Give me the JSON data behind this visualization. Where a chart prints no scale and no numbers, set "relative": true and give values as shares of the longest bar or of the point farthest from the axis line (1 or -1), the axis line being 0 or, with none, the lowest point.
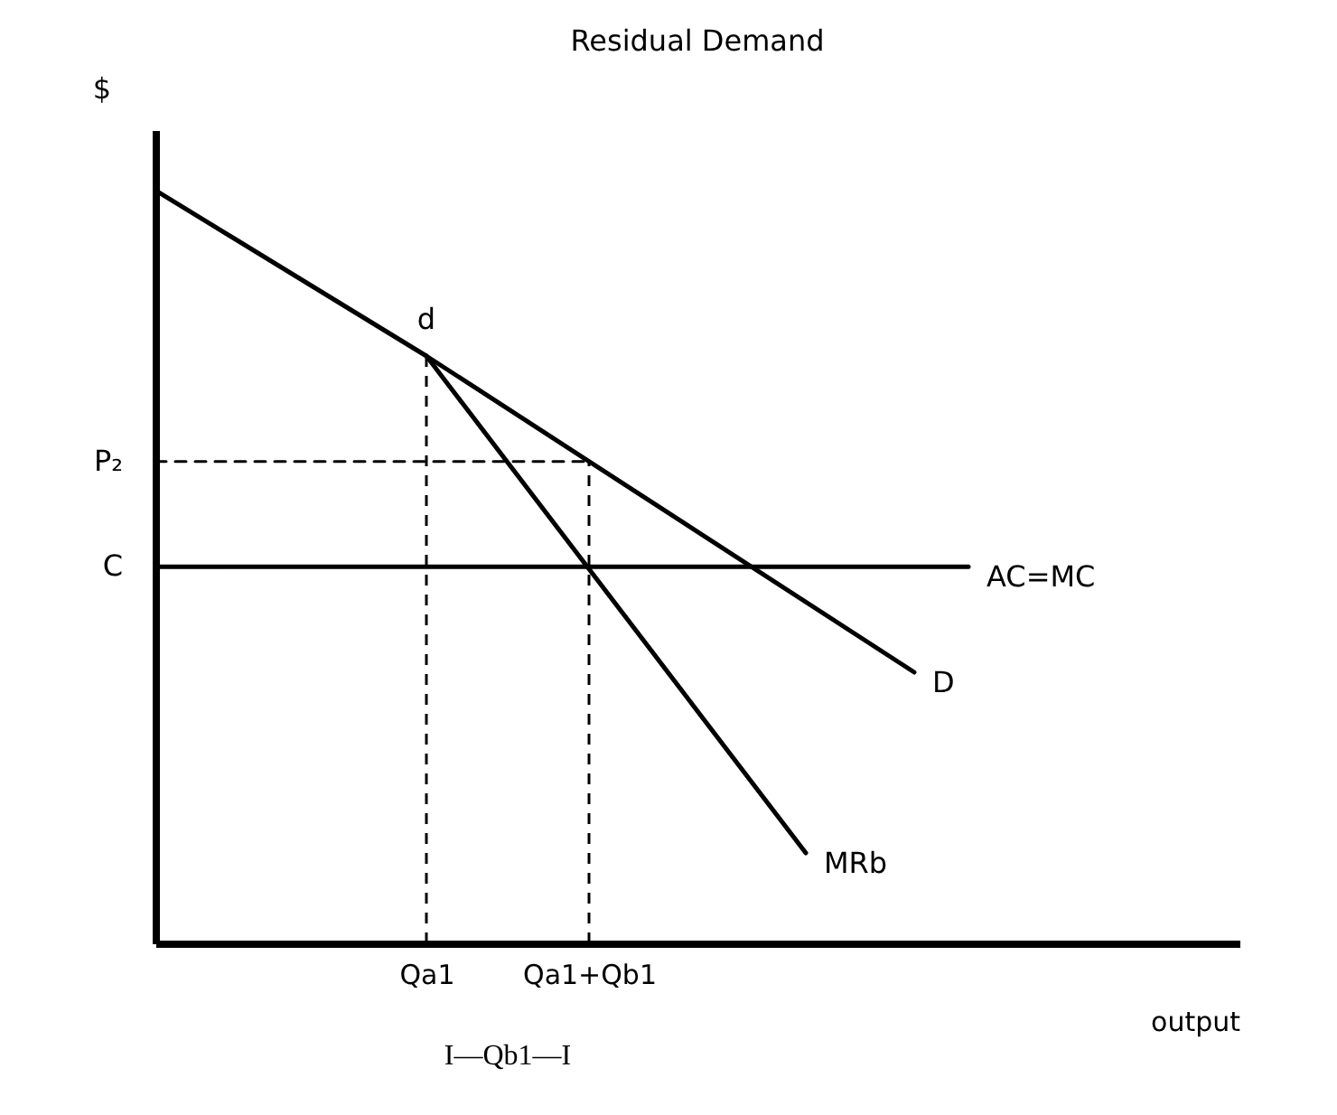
{
  "chart_data": {
    "type": "line",
    "title": "Residual Demand",
    "xlabel": "output",
    "ylabel": "$",
    "relative": true,
    "tick_labels": "x",
    "grid": false,
    "legend": false,
    "categories": [
      null,
      null,
      null,
      null,
      null,
      "Qa1",
      null,
      null,
      "Qa1+Qb1",
      null,
      null,
      null,
      null,
      null,
      null,
      null,
      null,
      null,
      null,
      null,
      null
    ],
    "series": [
      {
        "name": "D",
        "color": "#000000",
        "values": [
          1,
          null,
          null,
          null,
          null,
          0.78,
          null,
          null,
          null,
          null,
          null,
          null,
          null,
          null,
          0.36,
          null,
          null,
          null,
          null,
          null,
          null
        ]
      },
      {
        "name": "MRb",
        "color": "#000000",
        "values": [
          null,
          null,
          null,
          null,
          null,
          0.78,
          null,
          null,
          null,
          null,
          null,
          null,
          0.12,
          null,
          null,
          null,
          null,
          null,
          null,
          null,
          null
        ]
      },
      {
        "name": "AC=MC",
        "color": "#000000",
        "values": [
          0.5,
          null,
          null,
          null,
          null,
          null,
          null,
          null,
          null,
          null,
          null,
          null,
          null,
          null,
          null,
          0.5,
          null,
          null,
          null,
          null,
          null
        ]
      },
      {
        "color": "#000000",
        "line_style": "dashed",
        "values": [
          0.64,
          null,
          null,
          null,
          null,
          null,
          null,
          null,
          0.64,
          null,
          null,
          null,
          null,
          null,
          null,
          null,
          null,
          null,
          null,
          null,
          null
        ]
      }
    ],
    "ref_lines": [
      {
        "axis": "x",
        "value": "Qa1",
        "line_style": "dashed",
        "color": "#000000"
      },
      {
        "axis": "x",
        "value": "Qa1+Qb1",
        "line_style": "dashed",
        "color": "#000000"
      }
    ],
    "annotations": [
      {
        "text": "d",
        "x": "Qa1",
        "y": 0.78
      },
      "P₂",
      "C",
      "I—Qb1—I"
    ]
  }
}
